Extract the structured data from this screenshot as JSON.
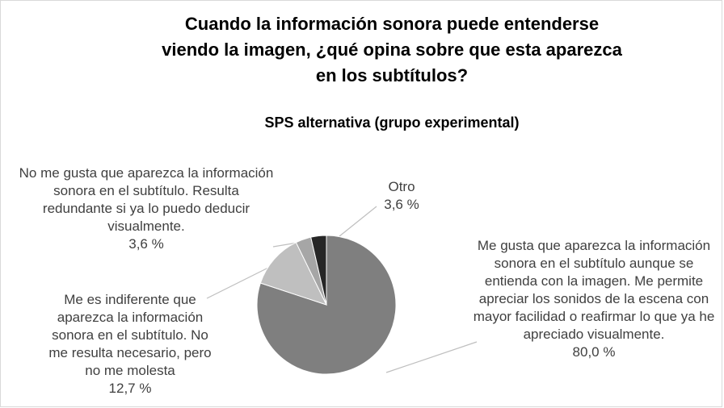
{
  "chart_data": {
    "type": "pie",
    "title": "Cuando la información sonora puede entenderse viendo la imagen, ¿qué opina sobre que esta aparezca en los subtítulos?",
    "subtitle": "SPS alternativa (grupo experimental)",
    "categories": [
      "Me gusta que aparezca la información sonora en el subtítulo aunque se entienda con la imagen. Me permite apreciar los sonidos de la escena con mayor facilidad o reafirmar lo que ya he apreciado visualmente.",
      "Me es indiferente que aparezca la información sonora en el subtítulo. No me resulta necesario, pero no me molesta",
      "No me gusta que aparezca la información sonora en el subtítulo. Resulta redundante si ya lo puedo deducir visualmente.",
      "Otro"
    ],
    "values": [
      80.0,
      12.7,
      3.6,
      3.6
    ],
    "value_labels": [
      "80,0 %",
      "12,7 %",
      "3,6 %",
      "3,6 %"
    ],
    "colors": [
      "#7f7f7f",
      "#bfbfbf",
      "#a6a6a6",
      "#262626"
    ]
  }
}
